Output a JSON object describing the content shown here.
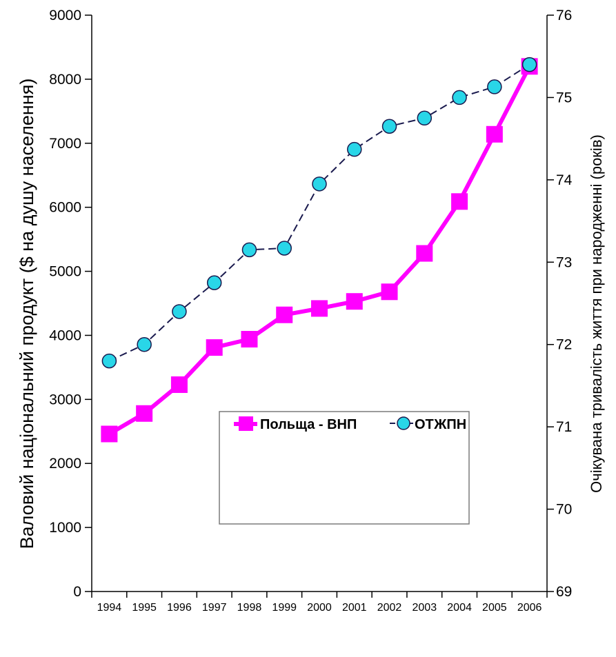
{
  "chart_data": {
    "type": "line",
    "title": "",
    "x": [
      "1994",
      "1995",
      "1996",
      "1997",
      "1998",
      "1999",
      "2000",
      "2001",
      "2002",
      "2003",
      "2004",
      "2005",
      "2006"
    ],
    "series": [
      {
        "name": "Польща - ВНП",
        "axis": "left",
        "color": "#ff00ff",
        "marker": "square",
        "values": [
          2460,
          2780,
          3230,
          3810,
          3940,
          4320,
          4420,
          4530,
          4680,
          5280,
          6090,
          7140,
          8200
        ]
      },
      {
        "name": "ОТЖПН",
        "axis": "right",
        "color": "#1a1a4e",
        "marker_color": "#29d6e8",
        "marker": "circle",
        "line_style": "dashed",
        "values": [
          71.8,
          72.0,
          72.4,
          72.75,
          73.15,
          73.17,
          73.95,
          74.37,
          74.65,
          74.75,
          75.0,
          75.13,
          75.4
        ]
      }
    ],
    "ylabel_left": "Валовий національний продукт ($ на душу населення)",
    "ylabel_right": "Очікувана тривалість життя при народженні (років)",
    "ylim_left": [
      0,
      9000
    ],
    "ylim_right": [
      69,
      76
    ],
    "yticks_left": [
      "0",
      "1000",
      "2000",
      "3000",
      "4000",
      "5000",
      "6000",
      "7000",
      "8000",
      "9000"
    ],
    "yticks_right": [
      "69",
      "70",
      "71",
      "72",
      "73",
      "74",
      "75",
      "76"
    ],
    "grid": false,
    "legend_placement": "center-right"
  }
}
